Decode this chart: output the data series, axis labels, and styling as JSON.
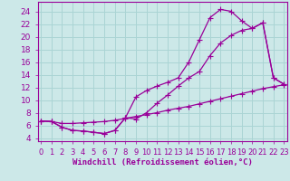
{
  "xlabel": "Windchill (Refroidissement éolien,°C)",
  "ylabel": "",
  "bg_color": "#cce8e8",
  "grid_color": "#aad4d4",
  "line_color": "#990099",
  "x_ticks": [
    0,
    1,
    2,
    3,
    4,
    5,
    6,
    7,
    8,
    9,
    10,
    11,
    12,
    13,
    14,
    15,
    16,
    17,
    18,
    19,
    20,
    21,
    22,
    23
  ],
  "y_ticks": [
    4,
    6,
    8,
    10,
    12,
    14,
    16,
    18,
    20,
    22,
    24
  ],
  "xlim": [
    -0.3,
    23.3
  ],
  "ylim": [
    3.5,
    25.5
  ],
  "line1_x": [
    0,
    1,
    2,
    3,
    4,
    5,
    6,
    7,
    8,
    9,
    10,
    11,
    12,
    13,
    14,
    15,
    16,
    17,
    18,
    19,
    20,
    21,
    22,
    23
  ],
  "line1_y": [
    6.7,
    6.6,
    6.3,
    6.3,
    6.4,
    6.5,
    6.6,
    6.8,
    7.1,
    7.4,
    7.7,
    8.0,
    8.4,
    8.7,
    9.0,
    9.4,
    9.8,
    10.2,
    10.6,
    11.0,
    11.4,
    11.8,
    12.1,
    12.4
  ],
  "line2_x": [
    0,
    1,
    2,
    3,
    4,
    5,
    6,
    7,
    8,
    9,
    10,
    11,
    12,
    13,
    14,
    15,
    16,
    17,
    18,
    19,
    20,
    21,
    22,
    23
  ],
  "line2_y": [
    6.7,
    6.6,
    5.7,
    5.2,
    5.1,
    4.9,
    4.7,
    5.2,
    7.2,
    7.0,
    8.0,
    9.5,
    10.8,
    12.2,
    13.5,
    14.5,
    17.0,
    19.0,
    20.2,
    21.0,
    21.3,
    22.2,
    13.5,
    12.5
  ],
  "line3_x": [
    0,
    1,
    2,
    3,
    4,
    5,
    6,
    7,
    8,
    9,
    10,
    11,
    12,
    13,
    14,
    15,
    16,
    17,
    18,
    19,
    20,
    21,
    22,
    23
  ],
  "line3_y": [
    6.7,
    6.6,
    5.7,
    5.2,
    5.1,
    4.9,
    4.7,
    5.2,
    7.2,
    10.5,
    11.5,
    12.2,
    12.8,
    13.5,
    16.0,
    19.5,
    23.0,
    24.3,
    24.0,
    22.5,
    21.3,
    22.2,
    13.5,
    12.5
  ],
  "tick_fontsize": 6.5,
  "xlabel_fontsize": 6.5
}
